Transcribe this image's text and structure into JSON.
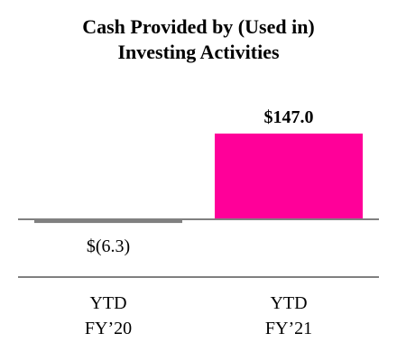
{
  "chart_data": {
    "type": "bar",
    "title_lines": [
      "Cash Provided by (Used in)",
      "Investing Activities"
    ],
    "categories": [
      [
        "YTD",
        "FY’20"
      ],
      [
        "YTD",
        "FY’21"
      ]
    ],
    "values": [
      -6.3,
      147.0
    ],
    "data_labels": [
      "$(6.3)",
      "$147.0"
    ],
    "bar_colors": [
      "#808080",
      "#ff0099"
    ],
    "axis_color": "#808080",
    "ylim": [
      -6.3,
      147.0
    ],
    "grid": false,
    "legend": "none"
  }
}
